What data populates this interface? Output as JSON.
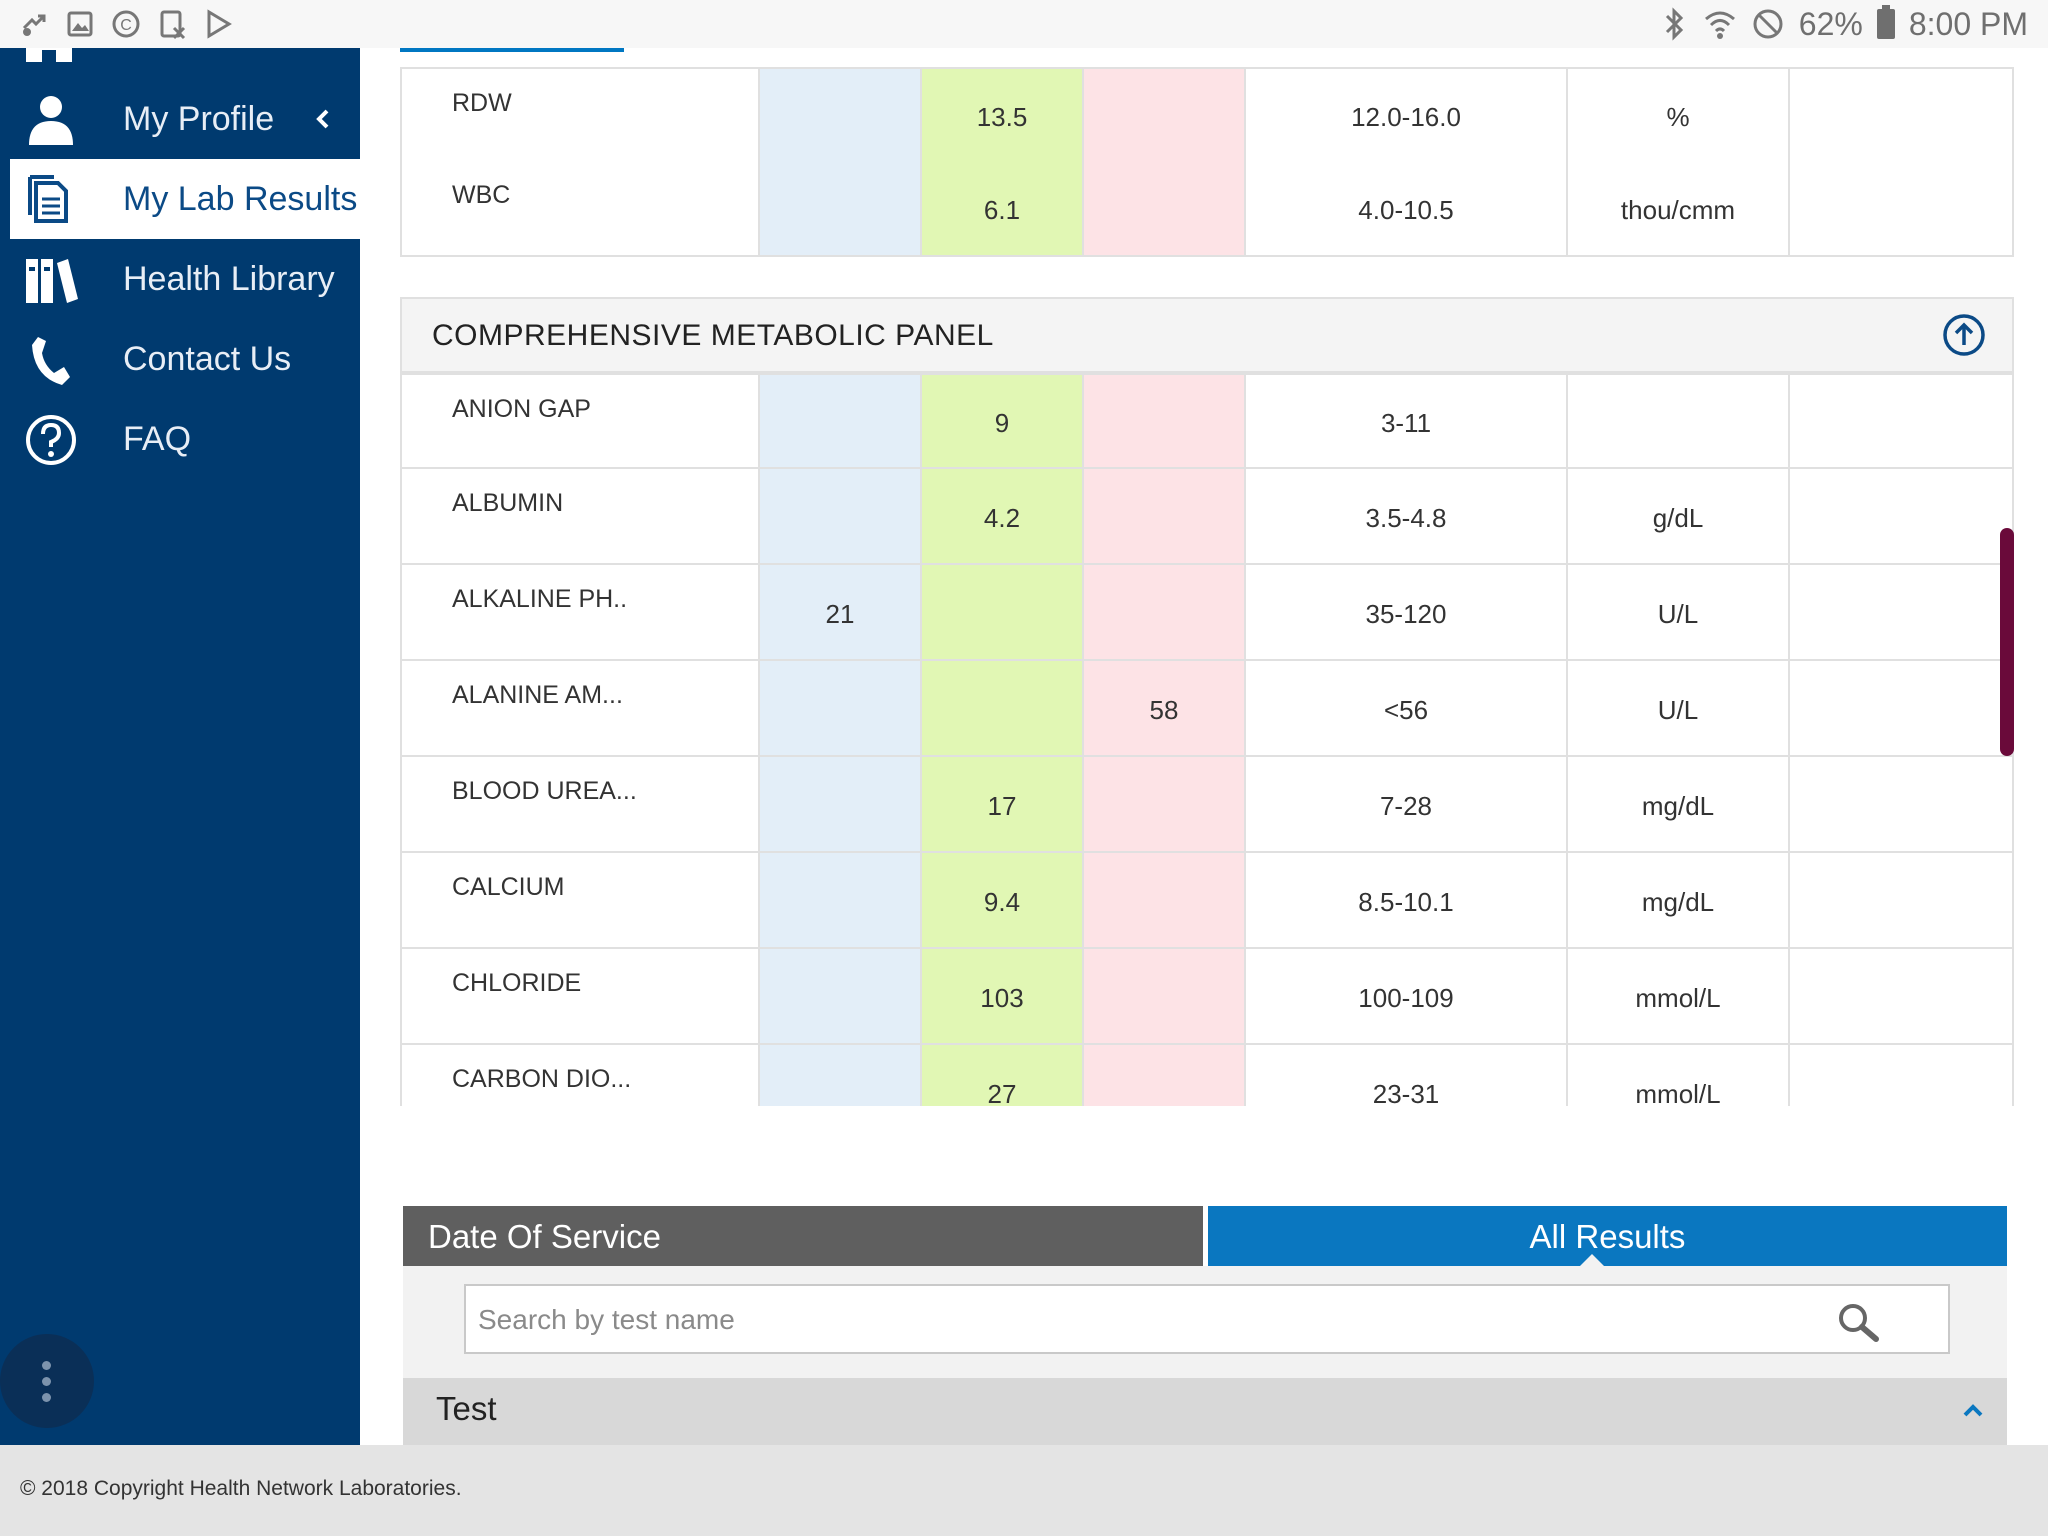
{
  "status_bar": {
    "icons": [
      "app-notification-icon",
      "gallery-icon",
      "copyright-icon",
      "calculator-icon",
      "play-store-icon"
    ],
    "right_icons": [
      "bluetooth-icon",
      "wifi-icon",
      "do-not-disturb-icon",
      "battery-icon"
    ],
    "battery": "62%",
    "time": "8:00 PM"
  },
  "sidebar": {
    "bg_color": "#003a6f",
    "items": [
      {
        "label": "My Profile",
        "icon": "person-icon"
      },
      {
        "label": "My Lab Results",
        "icon": "document-icon",
        "active": true
      },
      {
        "label": "Health Library",
        "icon": "library-icon"
      },
      {
        "label": "Contact Us",
        "icon": "phone-icon"
      },
      {
        "label": "FAQ",
        "icon": "question-circle-icon"
      }
    ]
  },
  "cbc_rows": [
    {
      "name": "RDW",
      "low": "",
      "normal": "13.5",
      "high": "",
      "range": "12.0-16.0",
      "unit": "%"
    },
    {
      "name": "WBC",
      "low": "",
      "normal": "6.1",
      "high": "",
      "range": "4.0-10.5",
      "unit": "thou/cmm"
    }
  ],
  "panel": {
    "title": "COMPREHENSIVE METABOLIC PANEL",
    "rows": [
      {
        "name": "ANION GAP",
        "low": "",
        "normal": "9",
        "high": "",
        "range": "3-11",
        "unit": ""
      },
      {
        "name": "ALBUMIN",
        "low": "",
        "normal": "4.2",
        "high": "",
        "range": "3.5-4.8",
        "unit": "g/dL"
      },
      {
        "name": "ALKALINE PH..",
        "low": "21",
        "normal": "",
        "high": "",
        "range": "35-120",
        "unit": "U/L"
      },
      {
        "name": "ALANINE AM...",
        "low": "",
        "normal": "",
        "high": "58",
        "range": "<56",
        "unit": "U/L"
      },
      {
        "name": "BLOOD UREA...",
        "low": "",
        "normal": "17",
        "high": "",
        "range": "7-28",
        "unit": "mg/dL"
      },
      {
        "name": "CALCIUM",
        "low": "",
        "normal": "9.4",
        "high": "",
        "range": "8.5-10.1",
        "unit": "mg/dL"
      },
      {
        "name": "CHLORIDE",
        "low": "",
        "normal": "103",
        "high": "",
        "range": "100-109",
        "unit": "mmol/L"
      },
      {
        "name": "CARBON DIO...",
        "low": "",
        "normal": "27",
        "high": "",
        "range": "23-31",
        "unit": "mmol/L"
      }
    ]
  },
  "colors": {
    "low": "#e3eef8",
    "normal": "#e1f7b4",
    "high": "#fde3e6",
    "tab_active": "#0a77c0",
    "tab_inactive": "#5f5f5f"
  },
  "tabs": {
    "date": "Date Of Service",
    "all": "All Results"
  },
  "search": {
    "placeholder": "Search by test name",
    "value": ""
  },
  "test_header": "Test",
  "footer": "© 2018 Copyright Health Network Laboratories."
}
